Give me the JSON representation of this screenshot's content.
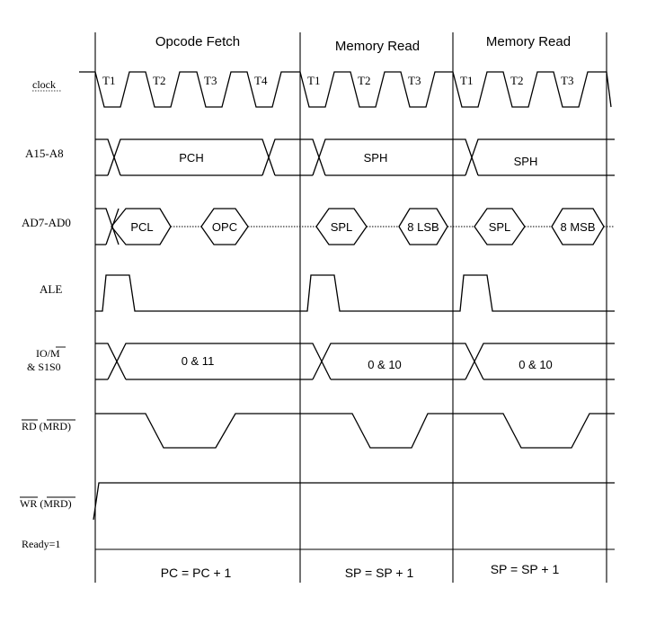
{
  "cycles": [
    {
      "name": "Opcode Fetch",
      "states": [
        "T1",
        "T2",
        "T3",
        "T4"
      ],
      "footer": "PC = PC + 1"
    },
    {
      "name": "Memory Read",
      "states": [
        "T1",
        "T2",
        "T3"
      ],
      "footer": "SP = SP + 1"
    },
    {
      "name": "Memory Read",
      "states": [
        "T1",
        "T2",
        "T3"
      ],
      "footer": "SP = SP + 1"
    }
  ],
  "signals": {
    "clock": "clock",
    "a15_a8": "A15-A8",
    "ad7_ad0": "AD7-AD0",
    "ale": "ALE",
    "io_m_line1": "IO/M",
    "io_m_line2": "& S1S0",
    "rd": "RD (MRD)",
    "wr": "WR (MRD)",
    "ready": "Ready=1"
  },
  "bus_values": {
    "a15_a8": [
      "PCH",
      "SPH",
      "SPH"
    ],
    "ad7_ad0": [
      [
        "PCL",
        "OPC"
      ],
      [
        "SPL",
        "8 LSB"
      ],
      [
        "SPL",
        "8 MSB"
      ]
    ],
    "io_m": [
      "0 & 11",
      "0 & 10",
      "0 & 10"
    ]
  }
}
